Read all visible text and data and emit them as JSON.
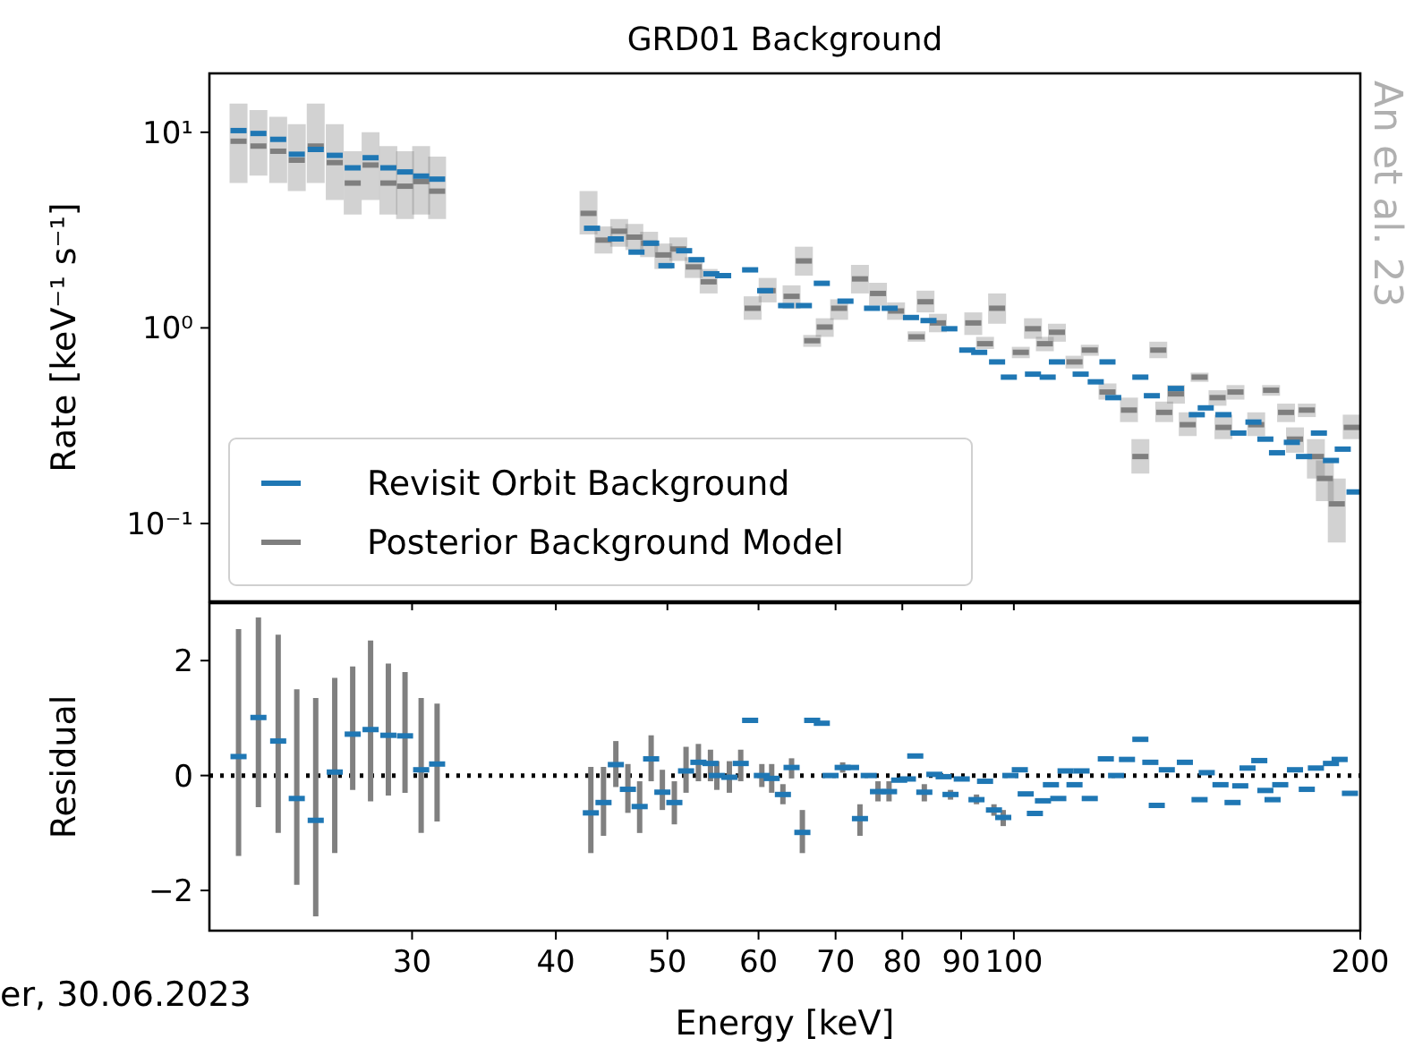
{
  "chart_data": [
    {
      "type": "scatter",
      "title": "GRD01 Background",
      "ylabel": "Rate [keV⁻¹ s⁻¹]",
      "log": "xy",
      "xlim": [
        20,
        200
      ],
      "xticks": [
        30,
        40,
        50,
        60,
        70,
        80,
        90,
        100,
        200
      ],
      "ylim": [
        0.04,
        20
      ],
      "yticks": [
        {
          "value": 0.1,
          "label": "10⁻¹"
        },
        {
          "value": 1,
          "label": "10⁰"
        },
        {
          "value": 10,
          "label": "10¹"
        }
      ],
      "tick_labels": "y",
      "legend": "bottom left",
      "annotations": [
        "An et al. 23"
      ],
      "series": [
        {
          "name": "Revisit Orbit Background",
          "color": "#1f77b4",
          "x": [
            21.2,
            22.06,
            22.95,
            23.82,
            24.74,
            25.7,
            26.64,
            27.61,
            28.61,
            29.58,
            30.55,
            31.54,
            43.0,
            45.1,
            47.0,
            48.4,
            49.9,
            51.7,
            53.0,
            54.6,
            55.9,
            59.0,
            60.8,
            63.4,
            65.7,
            68.1,
            71.4,
            75.3,
            78.0,
            81.4,
            84.3,
            87.9,
            91.1,
            93.3,
            96.7,
            99.0,
            103.9,
            107.0,
            109.0,
            114.3,
            117.8,
            120.6,
            122.0,
            128.8,
            131.8,
            138.3,
            144.2,
            146.8,
            152.1,
            156.7,
            161.5,
            165.4,
            169.3,
            174.4,
            178.7,
            184.1,
            188.6,
            193.1,
            197.7
          ],
          "values": [
            10.2,
            9.86,
            9.2,
            7.72,
            8.17,
            7.62,
            6.58,
            7.41,
            6.58,
            6.27,
            5.97,
            5.76,
            3.23,
            2.85,
            2.44,
            2.71,
            2.08,
            2.48,
            2.23,
            1.89,
            1.85,
            1.98,
            1.55,
            1.3,
            1.3,
            1.69,
            1.37,
            1.26,
            1.26,
            1.13,
            1.09,
            0.99,
            0.77,
            0.75,
            0.67,
            0.56,
            0.58,
            0.56,
            0.67,
            0.58,
            0.53,
            0.67,
            0.44,
            0.56,
            0.45,
            0.49,
            0.36,
            0.39,
            0.36,
            0.29,
            0.33,
            0.27,
            0.23,
            0.26,
            0.22,
            0.29,
            0.21,
            0.24,
            0.145
          ]
        },
        {
          "name": "Posterior Background Model",
          "color": "#7f7f7f",
          "x": [
            21.2,
            22.06,
            22.95,
            23.82,
            24.74,
            25.7,
            26.64,
            27.61,
            28.61,
            29.58,
            30.55,
            31.54,
            42.7,
            44.0,
            45.4,
            46.8,
            48.2,
            49.6,
            51.1,
            52.7,
            54.3,
            59.3,
            61.1,
            64.1,
            65.7,
            66.8,
            68.5,
            70.5,
            73.5,
            76.2,
            79.0,
            82.3,
            83.8,
            85.9,
            92.2,
            94.4,
            96.7,
            101.4,
            103.9,
            106.4,
            109.0,
            112.9,
            116.4,
            120.6,
            125.9,
            128.8,
            133.5,
            135.1,
            138.3,
            141.6,
            145.0,
            150.3,
            152.1,
            155.8,
            162.4,
            167.3,
            172.4,
            175.5,
            179.7,
            183.0,
            186.3,
            190.8,
            196.6
          ],
          "values": [
            9.0,
            8.5,
            8.0,
            7.2,
            8.5,
            7.0,
            5.5,
            6.8,
            5.5,
            5.3,
            5.6,
            5.0,
            3.85,
            2.81,
            3.12,
            2.91,
            2.71,
            2.36,
            2.53,
            2.05,
            1.72,
            1.26,
            1.55,
            1.45,
            2.2,
            0.86,
            1.01,
            1.26,
            1.78,
            1.5,
            1.22,
            0.9,
            1.36,
            1.06,
            1.06,
            0.83,
            1.26,
            0.75,
            0.99,
            0.83,
            0.95,
            0.67,
            0.77,
            0.47,
            0.38,
            0.22,
            0.77,
            0.37,
            0.46,
            0.32,
            0.56,
            0.44,
            0.31,
            0.47,
            0.32,
            0.48,
            0.37,
            0.27,
            0.38,
            0.22,
            0.17,
            0.126,
            0.31
          ],
          "errors": [
            [
              5.5,
              14
            ],
            [
              6,
              13
            ],
            [
              5.5,
              12
            ],
            [
              5,
              11
            ],
            [
              5.5,
              14
            ],
            [
              4.5,
              11
            ],
            [
              3.8,
              8
            ],
            [
              4.5,
              10
            ],
            [
              3.8,
              8.5
            ],
            [
              3.6,
              8
            ],
            [
              3.8,
              8.5
            ],
            [
              3.6,
              7.5
            ],
            [
              3.0,
              5.0
            ],
            [
              2.4,
              3.3
            ],
            [
              2.6,
              3.6
            ],
            [
              2.5,
              3.4
            ],
            [
              2.3,
              3.1
            ],
            [
              2.0,
              2.7
            ],
            [
              2.2,
              2.9
            ],
            [
              1.8,
              2.3
            ],
            [
              1.5,
              2.0
            ],
            [
              1.1,
              1.45
            ],
            [
              1.35,
              1.8
            ],
            [
              1.25,
              1.65
            ],
            [
              1.85,
              2.6
            ],
            [
              0.8,
              0.92
            ],
            [
              0.9,
              1.12
            ],
            [
              1.1,
              1.4
            ],
            [
              1.5,
              2.1
            ],
            [
              1.3,
              1.7
            ],
            [
              1.1,
              1.35
            ],
            [
              0.85,
              0.96
            ],
            [
              1.2,
              1.55
            ],
            [
              0.95,
              1.18
            ],
            [
              0.92,
              1.2
            ],
            [
              0.78,
              0.9
            ],
            [
              1.05,
              1.5
            ],
            [
              0.7,
              0.8
            ],
            [
              0.88,
              1.12
            ],
            [
              0.76,
              0.9
            ],
            [
              0.85,
              1.05
            ],
            [
              0.62,
              0.72
            ],
            [
              0.72,
              0.82
            ],
            [
              0.43,
              0.52
            ],
            [
              0.33,
              0.44
            ],
            [
              0.18,
              0.27
            ],
            [
              0.7,
              0.85
            ],
            [
              0.33,
              0.42
            ],
            [
              0.41,
              0.51
            ],
            [
              0.28,
              0.37
            ],
            [
              0.53,
              0.59
            ],
            [
              0.4,
              0.48
            ],
            [
              0.27,
              0.36
            ],
            [
              0.43,
              0.51
            ],
            [
              0.28,
              0.37
            ],
            [
              0.45,
              0.51
            ],
            [
              0.33,
              0.41
            ],
            [
              0.23,
              0.31
            ],
            [
              0.35,
              0.41
            ],
            [
              0.17,
              0.27
            ],
            [
              0.13,
              0.21
            ],
            [
              0.08,
              0.17
            ],
            [
              0.27,
              0.36
            ]
          ]
        }
      ]
    },
    {
      "type": "scatter",
      "xlabel": "Energy [keV]",
      "ylabel": "Residual",
      "log": "x",
      "xlim": [
        20,
        200
      ],
      "xticks": [
        30,
        40,
        50,
        60,
        70,
        80,
        90,
        100,
        200
      ],
      "ylim": [
        -2.7,
        3
      ],
      "yticks": [
        {
          "value": -2,
          "label": "−2"
        },
        0,
        2
      ],
      "annotations": [
        "er, 30.06.2023"
      ],
      "ref_lines": [
        {
          "axis": "y",
          "value": 0,
          "color": "#000000",
          "line_style": "dotted"
        }
      ],
      "series": [
        {
          "color": "#1f77b4",
          "x": [
            21.2,
            22.06,
            22.95,
            23.82,
            24.74,
            25.7,
            26.64,
            27.61,
            28.61,
            29.58,
            30.55,
            31.54,
            42.9,
            44.0,
            45.1,
            46.2,
            47.3,
            48.4,
            49.5,
            50.7,
            51.9,
            53.2,
            54.5,
            55.2,
            56.6,
            57.9,
            59.0,
            60.4,
            61.6,
            63.0,
            64.1,
            65.5,
            66.8,
            68.1,
            69.3,
            71.0,
            72.2,
            73.5,
            74.8,
            76.2,
            77.9,
            79.5,
            80.9,
            82.1,
            83.6,
            85.3,
            86.9,
            88.1,
            90.1,
            92.8,
            94.4,
            96.1,
            97.9,
            99.3,
            101.2,
            102.4,
            104.3,
            106.0,
            107.7,
            109.3,
            110.9,
            112.9,
            114.5,
            116.4,
            120.2,
            122.7,
            125.4,
            128.8,
            131.4,
            133.1,
            135.8,
            140.8,
            145.0,
            147.1,
            151.2,
            154.9,
            157.3,
            159.6,
            163.4,
            165.4,
            167.8,
            170.4,
            175.5,
            179.7,
            183.0,
            188.6,
            191.9,
            195.9
          ],
          "values": [
            0.33,
            1.01,
            0.6,
            -0.4,
            -0.78,
            0.06,
            0.72,
            0.8,
            0.7,
            0.69,
            0.1,
            0.2,
            -0.65,
            -0.47,
            0.19,
            -0.24,
            -0.54,
            0.29,
            -0.29,
            -0.47,
            0.08,
            0.23,
            0.21,
            0.0,
            -0.03,
            0.21,
            0.96,
            0.0,
            -0.05,
            -0.33,
            0.14,
            -0.99,
            0.96,
            0.91,
            0.0,
            0.14,
            0.14,
            -0.75,
            0.0,
            -0.28,
            -0.28,
            -0.08,
            -0.06,
            0.34,
            -0.29,
            0.02,
            -0.02,
            -0.33,
            -0.06,
            -0.42,
            -0.1,
            -0.6,
            -0.73,
            0.0,
            0.1,
            -0.32,
            -0.66,
            -0.44,
            -0.16,
            -0.4,
            0.08,
            -0.16,
            0.08,
            -0.4,
            0.29,
            0.0,
            0.28,
            0.63,
            0.23,
            -0.52,
            0.1,
            0.23,
            -0.42,
            0.05,
            -0.16,
            -0.47,
            -0.18,
            0.13,
            0.26,
            -0.26,
            -0.42,
            -0.16,
            0.1,
            -0.24,
            0.13,
            0.21,
            0.28,
            -0.31
          ],
          "errors": [
            [
              -1.4,
              2.55
            ],
            [
              -0.55,
              2.75
            ],
            [
              -1.0,
              2.45
            ],
            [
              -1.9,
              1.5
            ],
            [
              -2.45,
              1.35
            ],
            [
              -1.35,
              1.7
            ],
            [
              -0.25,
              1.9
            ],
            [
              -0.45,
              2.35
            ],
            [
              -0.35,
              1.95
            ],
            [
              -0.3,
              1.8
            ],
            [
              -1.0,
              1.35
            ],
            [
              -0.8,
              1.25
            ],
            [
              -1.35,
              0.15
            ],
            [
              -1.05,
              0.15
            ],
            [
              -0.2,
              0.6
            ],
            [
              -0.65,
              0.2
            ],
            [
              -1.0,
              -0.1
            ],
            [
              -0.1,
              0.7
            ],
            [
              -0.6,
              0.1
            ],
            [
              -0.85,
              -0.1
            ],
            [
              -0.3,
              0.5
            ],
            [
              -0.1,
              0.55
            ],
            [
              -0.1,
              0.45
            ],
            [
              -0.25,
              0.25
            ],
            [
              -0.3,
              0.25
            ],
            [
              -0.1,
              0.45
            ],
            null,
            [
              -0.2,
              0.2
            ],
            [
              -0.3,
              0.2
            ],
            [
              -0.5,
              -0.15
            ],
            [
              -0.05,
              0.3
            ],
            [
              -1.35,
              -0.6
            ],
            null,
            null,
            null,
            [
              0.05,
              0.23
            ],
            null,
            [
              -1.05,
              -0.5
            ],
            null,
            [
              -0.45,
              -0.1
            ],
            [
              -0.45,
              -0.1
            ],
            null,
            null,
            null,
            [
              -0.45,
              -0.15
            ],
            null,
            null,
            [
              -0.42,
              -0.25
            ],
            null,
            [
              -0.5,
              -0.33
            ],
            null,
            [
              -0.7,
              -0.5
            ],
            [
              -0.88,
              -0.6
            ],
            null,
            null,
            null,
            null,
            null,
            null,
            null,
            null,
            null,
            null,
            null,
            null,
            null,
            null,
            null,
            null,
            null,
            null,
            null,
            null,
            null,
            null,
            null,
            null,
            null,
            null,
            null,
            null,
            null,
            null,
            null,
            null,
            null,
            null,
            null
          ]
        }
      ]
    }
  ]
}
